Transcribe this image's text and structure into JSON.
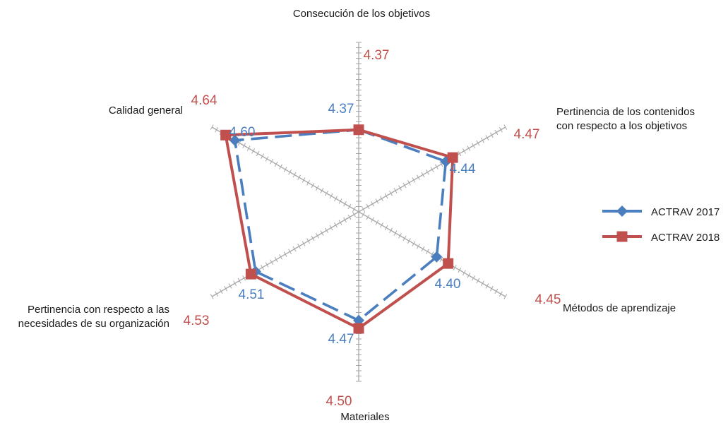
{
  "chart_data": {
    "type": "radar",
    "axes": [
      {
        "label_lines": [
          "Consecución de los objetivos"
        ]
      },
      {
        "label_lines": [
          "Pertinencia de los contenidos",
          "con respecto a los objetivos"
        ]
      },
      {
        "label_lines": [
          "Métodos de aprendizaje"
        ]
      },
      {
        "label_lines": [
          "Materiales"
        ]
      },
      {
        "label_lines": [
          "Pertinencia con respecto a las",
          "necesidades de su organización"
        ]
      },
      {
        "label_lines": [
          "Calidad general"
        ]
      }
    ],
    "series": [
      {
        "name": "ACTRAV 2017",
        "color": "#4a7ebf",
        "marker": "diamond",
        "line_style": "dashed",
        "values": [
          4.37,
          4.44,
          4.4,
          4.47,
          4.51,
          4.6
        ],
        "value_labels": [
          "4.37",
          "4.44",
          "4.40",
          "4.47",
          "4.51",
          "4.60"
        ]
      },
      {
        "name": "ACTRAV 2018",
        "color": "#c0504d",
        "marker": "square",
        "line_style": "solid",
        "values": [
          4.37,
          4.47,
          4.45,
          4.5,
          4.53,
          4.64
        ],
        "value_labels": [
          "4.37",
          "4.47",
          "4.45",
          "4.50",
          "4.53",
          "4.64"
        ]
      }
    ],
    "legend_position": "right",
    "grid": false
  }
}
